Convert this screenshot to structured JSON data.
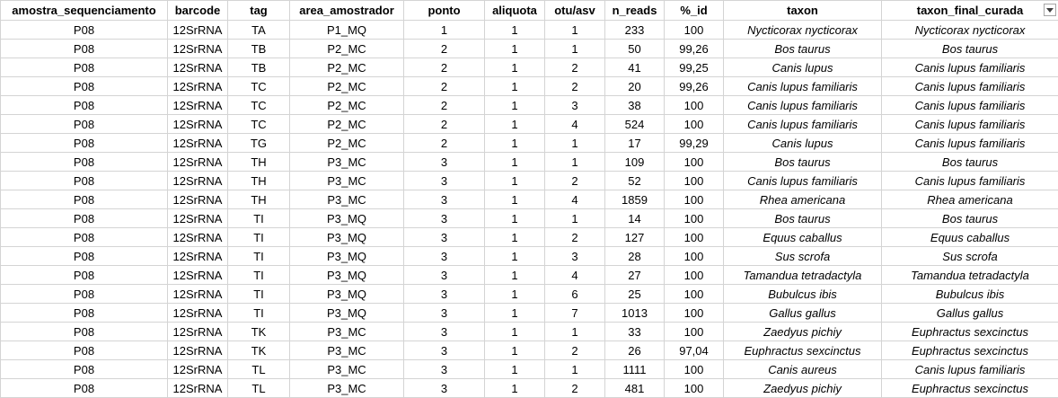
{
  "columns": [
    {
      "key": "amostra",
      "label": "amostra_sequenciamento"
    },
    {
      "key": "barcode",
      "label": "barcode"
    },
    {
      "key": "tag",
      "label": "tag"
    },
    {
      "key": "area",
      "label": "area_amostrador"
    },
    {
      "key": "ponto",
      "label": "ponto"
    },
    {
      "key": "aliquota",
      "label": "aliquota"
    },
    {
      "key": "otu",
      "label": "otu/asv"
    },
    {
      "key": "n_reads",
      "label": "n_reads"
    },
    {
      "key": "pct_id",
      "label": "%_id"
    },
    {
      "key": "taxon",
      "label": "taxon"
    },
    {
      "key": "taxon_final",
      "label": "taxon_final_curada"
    }
  ],
  "filter_icon": "dropdown-arrow-icon",
  "rows": [
    [
      "P08",
      "12SrRNA",
      "TA",
      "P1_MQ",
      "1",
      "1",
      "1",
      "233",
      "100",
      "Nycticorax nycticorax",
      "Nycticorax nycticorax"
    ],
    [
      "P08",
      "12SrRNA",
      "TB",
      "P2_MC",
      "2",
      "1",
      "1",
      "50",
      "99,26",
      "Bos taurus",
      "Bos taurus"
    ],
    [
      "P08",
      "12SrRNA",
      "TB",
      "P2_MC",
      "2",
      "1",
      "2",
      "41",
      "99,25",
      "Canis lupus",
      "Canis lupus familiaris"
    ],
    [
      "P08",
      "12SrRNA",
      "TC",
      "P2_MC",
      "2",
      "1",
      "2",
      "20",
      "99,26",
      "Canis lupus familiaris",
      "Canis lupus familiaris"
    ],
    [
      "P08",
      "12SrRNA",
      "TC",
      "P2_MC",
      "2",
      "1",
      "3",
      "38",
      "100",
      "Canis lupus familiaris",
      "Canis lupus familiaris"
    ],
    [
      "P08",
      "12SrRNA",
      "TC",
      "P2_MC",
      "2",
      "1",
      "4",
      "524",
      "100",
      "Canis lupus familiaris",
      "Canis lupus familiaris"
    ],
    [
      "P08",
      "12SrRNA",
      "TG",
      "P2_MC",
      "2",
      "1",
      "1",
      "17",
      "99,29",
      "Canis lupus",
      "Canis lupus familiaris"
    ],
    [
      "P08",
      "12SrRNA",
      "TH",
      "P3_MC",
      "3",
      "1",
      "1",
      "109",
      "100",
      "Bos taurus",
      "Bos taurus"
    ],
    [
      "P08",
      "12SrRNA",
      "TH",
      "P3_MC",
      "3",
      "1",
      "2",
      "52",
      "100",
      "Canis lupus familiaris",
      "Canis lupus familiaris"
    ],
    [
      "P08",
      "12SrRNA",
      "TH",
      "P3_MC",
      "3",
      "1",
      "4",
      "1859",
      "100",
      "Rhea americana",
      "Rhea americana"
    ],
    [
      "P08",
      "12SrRNA",
      "TI",
      "P3_MQ",
      "3",
      "1",
      "1",
      "14",
      "100",
      "Bos taurus",
      "Bos taurus"
    ],
    [
      "P08",
      "12SrRNA",
      "TI",
      "P3_MQ",
      "3",
      "1",
      "2",
      "127",
      "100",
      "Equus caballus",
      "Equus caballus"
    ],
    [
      "P08",
      "12SrRNA",
      "TI",
      "P3_MQ",
      "3",
      "1",
      "3",
      "28",
      "100",
      "Sus scrofa",
      "Sus scrofa"
    ],
    [
      "P08",
      "12SrRNA",
      "TI",
      "P3_MQ",
      "3",
      "1",
      "4",
      "27",
      "100",
      "Tamandua tetradactyla",
      "Tamandua tetradactyla"
    ],
    [
      "P08",
      "12SrRNA",
      "TI",
      "P3_MQ",
      "3",
      "1",
      "6",
      "25",
      "100",
      "Bubulcus ibis",
      "Bubulcus ibis"
    ],
    [
      "P08",
      "12SrRNA",
      "TI",
      "P3_MQ",
      "3",
      "1",
      "7",
      "1013",
      "100",
      "Gallus gallus",
      "Gallus gallus"
    ],
    [
      "P08",
      "12SrRNA",
      "TK",
      "P3_MC",
      "3",
      "1",
      "1",
      "33",
      "100",
      "Zaedyus pichiy",
      "Euphractus sexcinctus"
    ],
    [
      "P08",
      "12SrRNA",
      "TK",
      "P3_MC",
      "3",
      "1",
      "2",
      "26",
      "97,04",
      "Euphractus sexcinctus",
      "Euphractus sexcinctus"
    ],
    [
      "P08",
      "12SrRNA",
      "TL",
      "P3_MC",
      "3",
      "1",
      "1",
      "1111",
      "100",
      "Canis aureus",
      "Canis lupus familiaris"
    ],
    [
      "P08",
      "12SrRNA",
      "TL",
      "P3_MC",
      "3",
      "1",
      "2",
      "481",
      "100",
      "Zaedyus pichiy",
      "Euphractus sexcinctus"
    ]
  ]
}
